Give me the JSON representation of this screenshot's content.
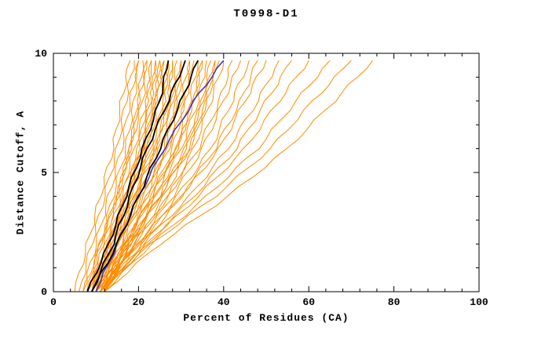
{
  "colors": {
    "background": "#ffffff",
    "frame": "#000000",
    "text": "#000000",
    "model_orange": "#ff8c00",
    "reference_black": "#000000",
    "reference_blue": "#3a35cc"
  },
  "chart_data": {
    "type": "line",
    "title": "T0998-D1",
    "xlabel": "Percent of Residues (CA)",
    "ylabel": "Distance Cutoff, A",
    "xlim": [
      0,
      100
    ],
    "ylim": [
      0,
      10
    ],
    "x_ticks": [
      0,
      20,
      40,
      60,
      80,
      100
    ],
    "y_ticks": [
      0,
      5,
      10
    ],
    "x_minor_step": 4,
    "y_minor_step": 1,
    "grid": false,
    "legend": "none",
    "y_grid": [
      0,
      2,
      4,
      6,
      8,
      9.7
    ],
    "series_groups": [
      {
        "name": "model-curve",
        "color": "#ff8c00",
        "width": 1,
        "jitter": 0.45,
        "x_values": [
          [
            5,
            8,
            11,
            14,
            16,
            18
          ],
          [
            6,
            9,
            12,
            15,
            17,
            19
          ],
          [
            7,
            10,
            13,
            16,
            18,
            20
          ],
          [
            8,
            11,
            14,
            17,
            19,
            20
          ],
          [
            8,
            11,
            15,
            18,
            20,
            21
          ],
          [
            9,
            12,
            15,
            18,
            20,
            22
          ],
          [
            7,
            11,
            15,
            18,
            21,
            22
          ],
          [
            9,
            13,
            16,
            19,
            22,
            23
          ],
          [
            10,
            13,
            17,
            20,
            22,
            23
          ],
          [
            8,
            12,
            16,
            20,
            23,
            24
          ],
          [
            10,
            14,
            17,
            21,
            23,
            24
          ],
          [
            9,
            13,
            17,
            21,
            24,
            25
          ],
          [
            11,
            15,
            18,
            22,
            24,
            25
          ],
          [
            8,
            13,
            17,
            21,
            24,
            26
          ],
          [
            10,
            14,
            18,
            22,
            25,
            26
          ],
          [
            9,
            14,
            18,
            23,
            26,
            27
          ],
          [
            11,
            15,
            19,
            23,
            26,
            27
          ],
          [
            10,
            15,
            19,
            24,
            27,
            28
          ],
          [
            12,
            16,
            20,
            24,
            27,
            28
          ],
          [
            9,
            14,
            19,
            24,
            28,
            29
          ],
          [
            10,
            15,
            20,
            25,
            28,
            30
          ],
          [
            11,
            16,
            21,
            26,
            29,
            30
          ],
          [
            12,
            17,
            22,
            26,
            29,
            31
          ],
          [
            10,
            16,
            21,
            27,
            30,
            32
          ],
          [
            11,
            17,
            22,
            27,
            31,
            32
          ],
          [
            12,
            17,
            23,
            28,
            31,
            33
          ],
          [
            11,
            17,
            23,
            29,
            32,
            34
          ],
          [
            12,
            18,
            24,
            29,
            33,
            35
          ],
          [
            10,
            17,
            23,
            29,
            33,
            35
          ],
          [
            11,
            18,
            24,
            30,
            34,
            36
          ],
          [
            12,
            18,
            25,
            31,
            35,
            37
          ],
          [
            11,
            18,
            25,
            31,
            35,
            38
          ],
          [
            12,
            19,
            26,
            32,
            36,
            38
          ],
          [
            10,
            18,
            25,
            32,
            36,
            39
          ],
          [
            12,
            19,
            27,
            33,
            37,
            40
          ],
          [
            11,
            19,
            27,
            34,
            39,
            42
          ],
          [
            12,
            20,
            28,
            35,
            40,
            44
          ],
          [
            11,
            20,
            29,
            37,
            42,
            46
          ],
          [
            12,
            21,
            30,
            38,
            44,
            48
          ],
          [
            10,
            20,
            30,
            39,
            45,
            50
          ],
          [
            11,
            21,
            32,
            41,
            48,
            53
          ],
          [
            12,
            22,
            33,
            43,
            50,
            56
          ],
          [
            11,
            22,
            34,
            45,
            53,
            60
          ],
          [
            12,
            23,
            36,
            48,
            57,
            65
          ],
          [
            10,
            23,
            38,
            51,
            61,
            70
          ],
          [
            12,
            25,
            41,
            55,
            66,
            75
          ]
        ]
      },
      {
        "name": "reference-blue-curve",
        "color": "#3a35cc",
        "width": 1.6,
        "jitter": 0.3,
        "x_values": [
          [
            10,
            15,
            20,
            26,
            33,
            40
          ]
        ]
      },
      {
        "name": "reference-black-curve",
        "color": "#000000",
        "width": 1.8,
        "jitter": 0.3,
        "x_values": [
          [
            8,
            13,
            17,
            21,
            25,
            27
          ],
          [
            9,
            14,
            18,
            22,
            27,
            31
          ],
          [
            9,
            15,
            20,
            25,
            30,
            34
          ]
        ]
      }
    ]
  }
}
